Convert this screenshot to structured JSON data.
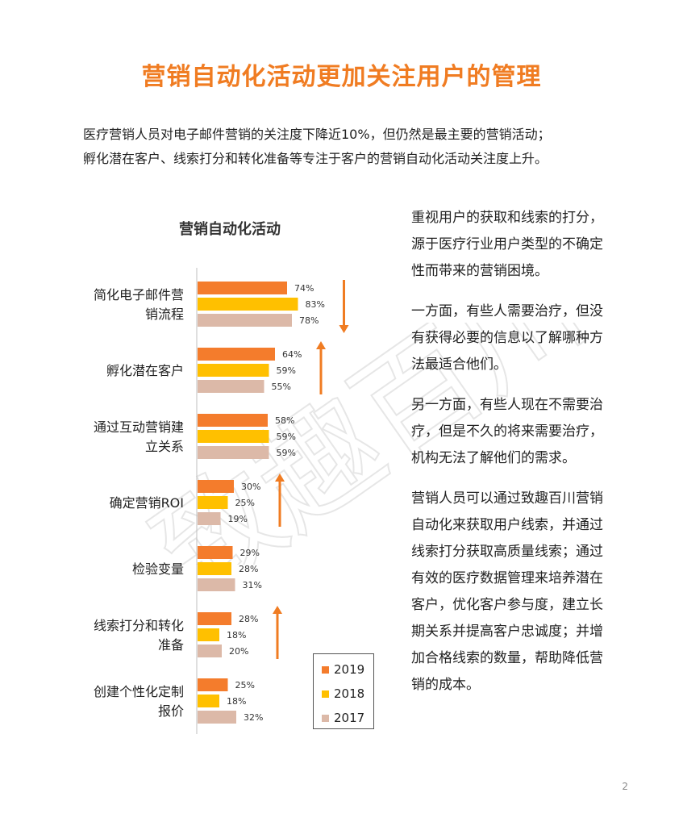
{
  "page_title": "营销自动化活动更加关注用户的管理",
  "intro": [
    "医疗营销人员对电子邮件营销的关注度下降近10%，但仍然是最主要的营销活动；",
    "孵化潜在客户、线索打分和转化准备等专注于客户的营销自动化活动关注度上升。"
  ],
  "right_text": [
    "重视用户的获取和线索的打分，源于医疗行业用户类型的不确定性而带来的营销困境。",
    "一方面，有些人需要治疗，但没有获得必要的信息以了解哪种方法最适合他们。",
    "另一方面，有些人现在不需要治疗，但是不久的将来需要治疗，机构无法了解他们的需求。",
    "营销人员可以通过致趣百川营销自动化来获取用户线索，并通过线索打分获取高质量线索；通过有效的医疗数据管理来培养潜在客户，优化客户参与度，建立长期关系并提高客户忠诚度；并增加合格线索的数量，帮助降低营销的成本。"
  ],
  "page_number": "2",
  "watermark_text": "致趣百川",
  "colors": {
    "title": "#f07c22",
    "s2019": "#f47c2c",
    "s2018": "#ffc000",
    "s2017": "#dcb9a8",
    "arrow": "#f07c22"
  },
  "chart_data": {
    "type": "bar",
    "orientation": "horizontal",
    "title": "营销自动化活动",
    "categories": [
      [
        "简化电子邮件营",
        "销流程"
      ],
      [
        "孵化潜在客户"
      ],
      [
        "通过互动营销建",
        "立关系"
      ],
      [
        "确定营销ROI"
      ],
      [
        "检验变量"
      ],
      [
        "线索打分和转化",
        "准备"
      ],
      [
        "创建个性化定制",
        "报价"
      ]
    ],
    "series": [
      {
        "name": "2019",
        "values": [
          74,
          64,
          58,
          30,
          29,
          28,
          25
        ]
      },
      {
        "name": "2018",
        "values": [
          83,
          59,
          59,
          25,
          28,
          18,
          18
        ]
      },
      {
        "name": "2017",
        "values": [
          78,
          55,
          59,
          19,
          31,
          20,
          32
        ]
      }
    ],
    "value_suffix": "%",
    "xlim": [
      0,
      100
    ],
    "legend_position": "bottom-right",
    "trend_arrows": [
      "down",
      "up",
      "none",
      "up",
      "none",
      "up",
      "none"
    ]
  }
}
